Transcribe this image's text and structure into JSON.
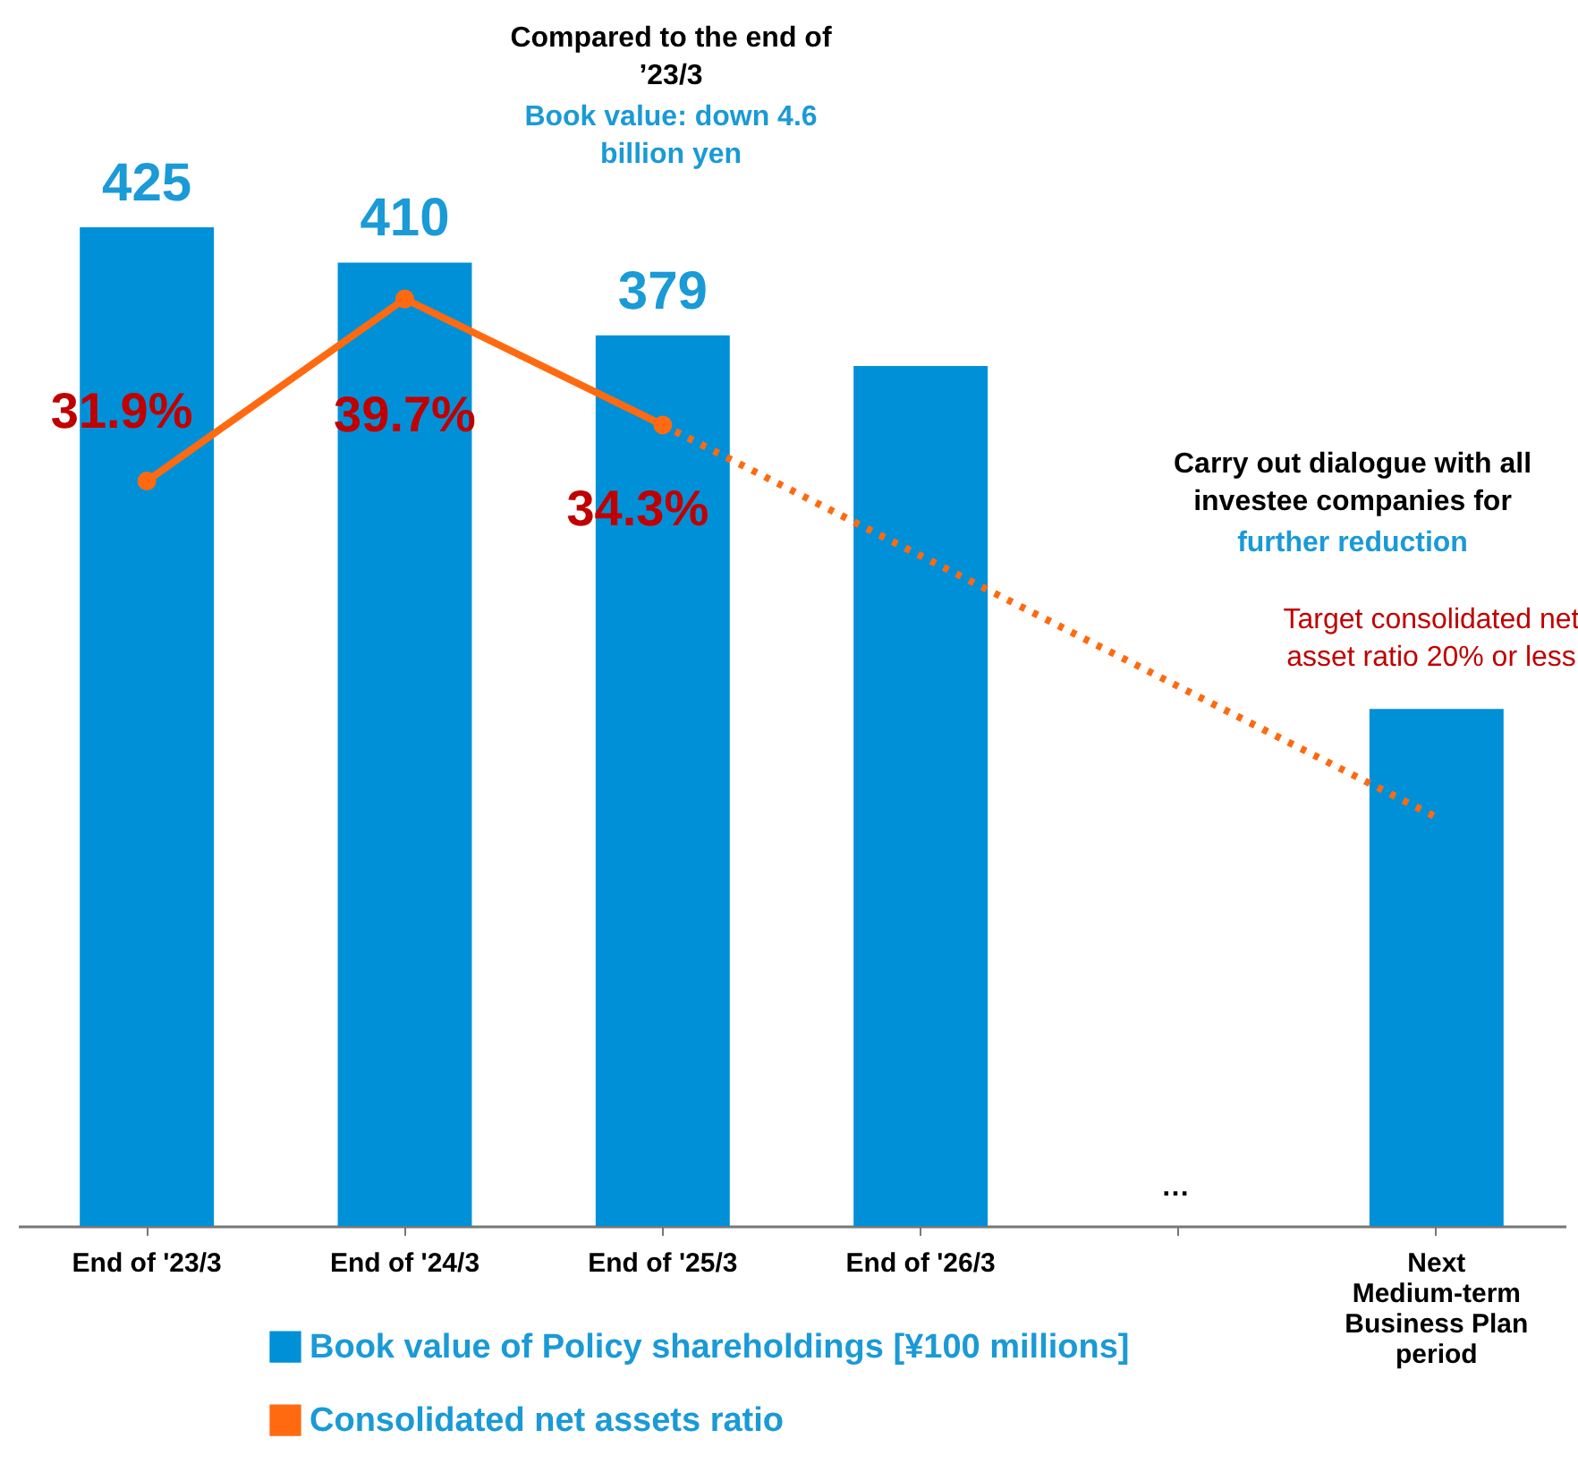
{
  "chart_data": {
    "type": "bar",
    "categories": [
      "End of '23/3",
      "End of '24/3",
      "End of '25/3",
      "End of '26/3",
      null,
      "Next Medium-term Business Plan period"
    ],
    "series": [
      {
        "name": "Book value of Policy shareholdings [¥100 millions]",
        "color": "#0090d8",
        "values": [
          425,
          410,
          379,
          366,
          null,
          220
        ],
        "value_labels": [
          "425",
          "410",
          "379",
          null,
          null,
          null
        ]
      },
      {
        "type": "line",
        "name": "Consolidated net assets ratio",
        "color": "#ff6a10",
        "axis": "y2",
        "values": [
          31.9,
          39.7,
          34.3,
          null,
          null,
          null
        ],
        "value_labels": [
          "31.9%",
          "39.7%",
          "34.3%",
          null,
          null,
          null
        ],
        "marker": "circle",
        "line_style": "solid"
      },
      {
        "type": "line",
        "color": "#ff6a10",
        "axis": "y2",
        "values": [
          null,
          null,
          34.3,
          null,
          null,
          17.5
        ],
        "marker": "none",
        "line_style": "dotted"
      }
    ],
    "tick_labels": "x",
    "grid": false,
    "legend": "bottom",
    "annotations": [
      "Compared to the end of ’23/3",
      "Book value: down 4.6 billion yen",
      "Carry out dialogue with all investee companies for",
      "further reduction",
      "Target consolidated net asset ratio 20% or less",
      "…"
    ]
  }
}
